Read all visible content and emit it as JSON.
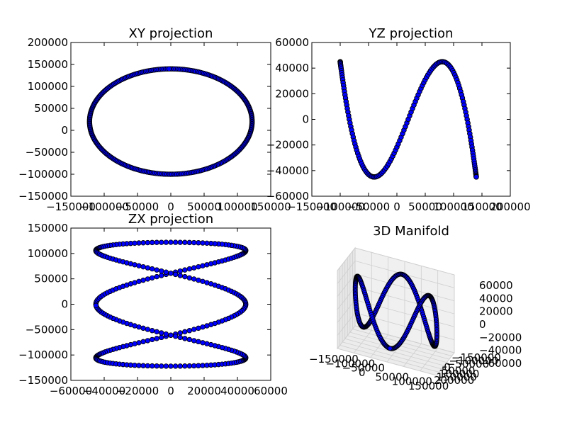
{
  "figure": {
    "background": "#ffffff",
    "marker_fill": "#0000ff",
    "marker_edge": "#000000"
  },
  "chart_data": [
    {
      "id": "xy",
      "type": "scatter",
      "title": "XY projection",
      "xlabel": "",
      "ylabel": "",
      "xlim": [
        -150000,
        150000
      ],
      "ylim": [
        -150000,
        200000
      ],
      "xticks": [
        "−150000",
        "−100000",
        "−50000",
        "0",
        "50000",
        "100000",
        "150000"
      ],
      "yticks": [
        "−150000",
        "−100000",
        "−50000",
        "0",
        "50000",
        "100000",
        "150000",
        "200000"
      ],
      "grid": false,
      "series": [
        {
          "param": "t in [0, 2π], 300 points",
          "x": "122000*sin(t)",
          "y": "20000 + 120000*cos(t)"
        }
      ],
      "note_points": {
        "x_values": [
          0,
          50000,
          100000,
          122000,
          100000,
          50000,
          0,
          -50000,
          -100000,
          -122000,
          -100000,
          -50000
        ],
        "y_values": [
          140000,
          130000,
          90000,
          20000,
          -50000,
          -90000,
          -100000,
          -90000,
          -50000,
          20000,
          90000,
          130000
        ]
      }
    },
    {
      "id": "yz",
      "type": "scatter",
      "title": "YZ projection",
      "xlabel": "",
      "ylabel": "",
      "xlim": [
        -150000,
        200000
      ],
      "ylim": [
        -60000,
        60000
      ],
      "xticks": [
        "−150000",
        "−100000",
        "−50000",
        "0",
        "50000",
        "100000",
        "150000",
        "200000"
      ],
      "yticks": [
        "−60000",
        "−40000",
        "−20000",
        "0",
        "20000",
        "40000",
        "60000"
      ],
      "grid": false,
      "series": [
        {
          "param": "t in [0, 2π], 300 points",
          "x": "20000 + 120000*cos(t)",
          "y": "-45000*cos(3t)"
        }
      ]
    },
    {
      "id": "zx",
      "type": "scatter",
      "title": "ZX projection",
      "xlabel": "",
      "ylabel": "",
      "xlim": [
        -60000,
        60000
      ],
      "ylim": [
        -150000,
        150000
      ],
      "xticks": [
        "−60000",
        "−40000",
        "−20000",
        "0",
        "20000",
        "40000",
        "60000"
      ],
      "yticks": [
        "−150000",
        "−100000",
        "−50000",
        "0",
        "50000",
        "100000",
        "150000"
      ],
      "grid": false,
      "series": [
        {
          "param": "t in [0, 2π], 300 points",
          "x": "-45000*cos(3t)",
          "y": "122000*sin(t)"
        }
      ]
    },
    {
      "id": "manifold",
      "type": "scatter",
      "title": "3D Manifold",
      "xlabel": "",
      "ylabel": "",
      "zlabel": "",
      "xlim": [
        -150000,
        150000
      ],
      "ylim": [
        -150000,
        200000
      ],
      "zlim": [
        -60000,
        60000
      ],
      "xticks": [
        "−150000",
        "−100000",
        "−50000",
        "0",
        "50000",
        "100000",
        "150000"
      ],
      "yticks": [
        "−150000",
        "−100000",
        "−50000",
        "0",
        "50000",
        "100000",
        "150000",
        "200000"
      ],
      "zticks": [
        "−60000",
        "−40000",
        "−20000",
        "0",
        "20000",
        "40000",
        "60000"
      ],
      "grid": true,
      "series": [
        {
          "param": "t in [0, 2π], 300 points",
          "x": "122000*sin(t)",
          "y": "20000 + 120000*cos(t)",
          "z": "-45000*cos(3t)"
        }
      ]
    }
  ]
}
